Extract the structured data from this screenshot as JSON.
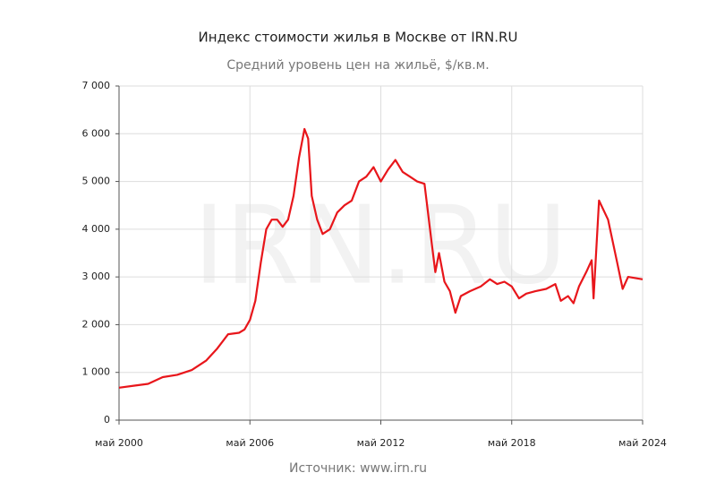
{
  "chart_data": {
    "type": "line",
    "title": "Индекс стоимости жилья в Москве от IRN.RU",
    "subtitle": "Средний уровень цен на жильё, $/кв.м.",
    "watermark": "IRN.RU",
    "source": "Источник: www.irn.ru",
    "x": [
      "2000-05",
      "2001-01",
      "2001-09",
      "2002-05",
      "2003-01",
      "2003-09",
      "2004-05",
      "2004-11",
      "2005-05",
      "2005-11",
      "2006-02",
      "2006-05",
      "2006-08",
      "2006-11",
      "2007-02",
      "2007-05",
      "2007-08",
      "2007-11",
      "2008-02",
      "2008-05",
      "2008-08",
      "2008-11",
      "2009-01",
      "2009-03",
      "2009-06",
      "2009-09",
      "2010-01",
      "2010-05",
      "2010-09",
      "2011-01",
      "2011-05",
      "2011-09",
      "2012-01",
      "2012-05",
      "2012-09",
      "2013-01",
      "2013-05",
      "2013-09",
      "2014-01",
      "2014-05",
      "2014-09",
      "2014-11",
      "2015-01",
      "2015-04",
      "2015-07",
      "2015-10",
      "2016-01",
      "2016-06",
      "2016-12",
      "2017-05",
      "2017-09",
      "2018-01",
      "2018-05",
      "2018-09",
      "2019-01",
      "2019-06",
      "2019-12",
      "2020-05",
      "2020-08",
      "2020-12",
      "2021-03",
      "2021-06",
      "2021-10",
      "2022-01",
      "2022-02",
      "2022-05",
      "2022-10",
      "2023-03",
      "2023-06",
      "2023-09",
      "2024-05"
    ],
    "series": [
      {
        "name": "Индекс",
        "color": "#e8161b",
        "values": [
          680,
          720,
          760,
          900,
          950,
          1050,
          1250,
          1500,
          1800,
          1830,
          1900,
          2100,
          2500,
          3300,
          4000,
          4200,
          4200,
          4050,
          4200,
          4700,
          5500,
          6100,
          5900,
          4700,
          4200,
          3900,
          4000,
          4350,
          4500,
          4600,
          5000,
          5100,
          5300,
          5000,
          5250,
          5450,
          5200,
          5100,
          5000,
          4950,
          3700,
          3100,
          3500,
          2900,
          2700,
          2250,
          2600,
          2700,
          2800,
          2950,
          2850,
          2900,
          2800,
          2550,
          2650,
          2700,
          2750,
          2850,
          2500,
          2600,
          2450,
          2800,
          3100,
          3350,
          2550,
          4600,
          4200,
          3300,
          2750,
          3000,
          2950
        ]
      }
    ],
    "xlim": [
      "2000-05",
      "2024-05"
    ],
    "xticks": [
      {
        "value": "2000-05",
        "label": "май 2000"
      },
      {
        "value": "2006-05",
        "label": "май 2006"
      },
      {
        "value": "2012-05",
        "label": "май 2012"
      },
      {
        "value": "2018-05",
        "label": "май 2018"
      },
      {
        "value": "2024-05",
        "label": "май 2024"
      }
    ],
    "ylim": [
      0,
      7000
    ],
    "yticks": [
      0,
      {
        "value": 1000,
        "label": "1 000"
      },
      {
        "value": 2000,
        "label": "2 000"
      },
      {
        "value": 3000,
        "label": "3 000"
      },
      {
        "value": 4000,
        "label": "4 000"
      },
      {
        "value": 5000,
        "label": "5 000"
      },
      {
        "value": 6000,
        "label": "6 000"
      },
      {
        "value": 7000,
        "label": "7 000"
      }
    ],
    "grid": true
  }
}
